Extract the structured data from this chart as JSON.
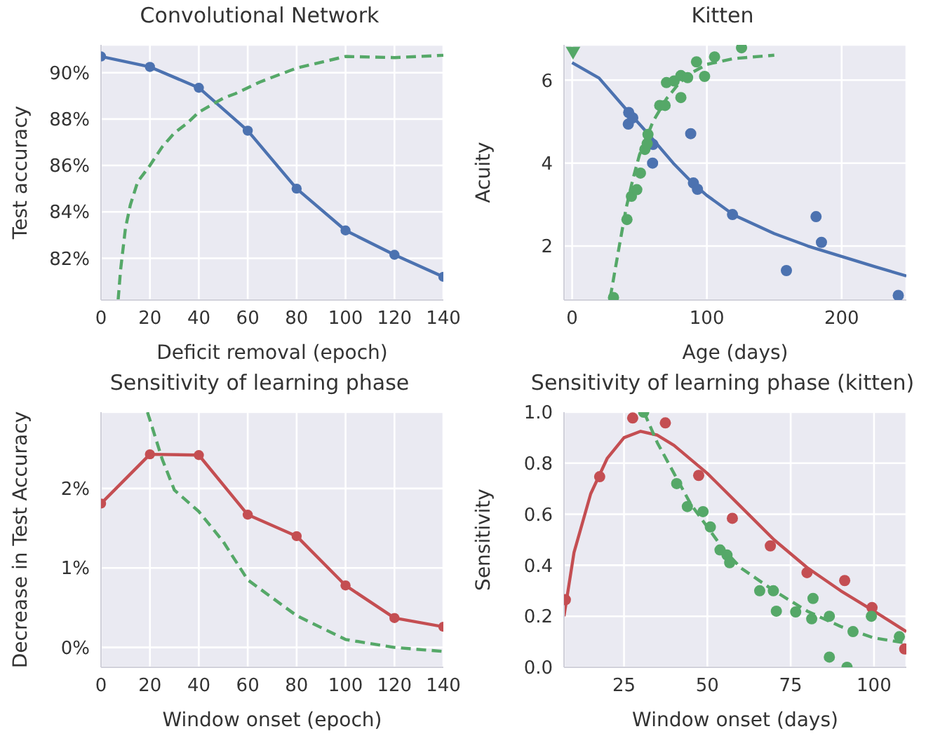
{
  "chart_data": [
    {
      "type": "line",
      "title": "Convolutional Network",
      "xlabel": "Deficit removal (epoch)",
      "ylabel": "Test accuracy",
      "xlim": [
        0,
        140
      ],
      "xticks": [
        0,
        20,
        40,
        60,
        80,
        100,
        120,
        140
      ],
      "ylim": [
        80.2,
        91.2
      ],
      "yticks": [
        {
          "value": 82,
          "label": "82%"
        },
        {
          "value": 84,
          "label": "84%"
        },
        {
          "value": 86,
          "label": "86%"
        },
        {
          "value": 88,
          "label": "88%"
        },
        {
          "value": 90,
          "label": "90%"
        }
      ],
      "grid": true,
      "series": [
        {
          "color": "#4c72b0",
          "marker": "circle",
          "line_style": "solid",
          "x": [
            0,
            20,
            40,
            60,
            80,
            100,
            120,
            140
          ],
          "values": [
            90.7,
            90.25,
            89.35,
            87.5,
            85.0,
            83.2,
            82.15,
            81.2
          ]
        },
        {
          "color": "#55a868",
          "marker": "none",
          "line_style": "dashed",
          "x": [
            7,
            8,
            10,
            12,
            15,
            20,
            25,
            30,
            35,
            40,
            50,
            55,
            65,
            80,
            100,
            120,
            140
          ],
          "values": [
            80.2,
            81.5,
            83.3,
            84.3,
            85.3,
            86.0,
            86.8,
            87.4,
            87.8,
            88.3,
            88.9,
            89.1,
            89.6,
            90.2,
            90.7,
            90.65,
            90.75
          ]
        }
      ]
    },
    {
      "type": "scatter",
      "title": "Kitten",
      "xlabel": "Age (days)",
      "ylabel": "Acuity",
      "xlim": [
        -6,
        248
      ],
      "xticks": [
        0,
        100,
        200
      ],
      "ylim": [
        0.7,
        6.85
      ],
      "yticks": [
        2,
        4,
        6
      ],
      "grid": true,
      "series": [
        {
          "color": "#4c72b0",
          "marker": "circle",
          "x": [
            42,
            41.7,
            45,
            60,
            59.7,
            88,
            90,
            93,
            119,
            159,
            181,
            185,
            242
          ],
          "values": [
            5.22,
            4.94,
            5.09,
            4.45,
            4.0,
            4.71,
            3.52,
            3.37,
            2.76,
            1.41,
            2.71,
            2.09,
            0.81
          ]
        },
        {
          "type": "line",
          "color": "#4c72b0",
          "marker": "none",
          "line_style": "solid",
          "x": [
            0,
            20,
            40,
            56,
            75,
            90,
            100,
            120,
            150,
            175,
            200,
            225,
            248
          ],
          "values": [
            6.42,
            6.05,
            5.3,
            4.72,
            4.0,
            3.5,
            3.22,
            2.75,
            2.3,
            2.0,
            1.75,
            1.5,
            1.28
          ]
        },
        {
          "color": "#55a868",
          "marker": "triangle",
          "x": [
            0.7
          ],
          "values": [
            6.67
          ]
        },
        {
          "color": "#55a868",
          "marker": "circle",
          "x": [
            30.7,
            40.7,
            44,
            48,
            50.7,
            54,
            55.7,
            56.3,
            65,
            69,
            70,
            75.7,
            80.7,
            80.7,
            85.7,
            92.3,
            98.3,
            105.7,
            125.7
          ],
          "values": [
            0.76,
            2.64,
            3.2,
            3.36,
            3.76,
            4.33,
            4.47,
            4.69,
            5.39,
            5.39,
            5.94,
            5.98,
            6.11,
            5.58,
            6.06,
            6.44,
            6.09,
            6.56,
            6.78
          ]
        },
        {
          "type": "line",
          "color": "#55a868",
          "marker": "none",
          "line_style": "dashed",
          "x": [
            28.3,
            35,
            40,
            45,
            50,
            55,
            60,
            70,
            80,
            90,
            100,
            120,
            150
          ],
          "values": [
            0.76,
            2.0,
            2.9,
            3.6,
            4.2,
            4.6,
            5.0,
            5.55,
            5.95,
            6.2,
            6.38,
            6.52,
            6.6
          ]
        }
      ]
    },
    {
      "type": "line",
      "title": "Sensitivity of learning phase",
      "xlabel": "Window onset (epoch)",
      "ylabel": "Decrease in Test Accuracy",
      "xlim": [
        0,
        140
      ],
      "xticks": [
        0,
        20,
        40,
        60,
        80,
        100,
        120,
        140
      ],
      "ylim": [
        -0.25,
        2.96
      ],
      "yticks": [
        {
          "value": 0,
          "label": "0%"
        },
        {
          "value": 1,
          "label": "1%"
        },
        {
          "value": 2,
          "label": "2%"
        }
      ],
      "grid": true,
      "series": [
        {
          "color": "#c44e52",
          "marker": "circle",
          "line_style": "solid",
          "x": [
            0,
            20,
            40,
            60,
            80,
            100,
            120,
            140
          ],
          "values": [
            1.81,
            2.43,
            2.42,
            1.67,
            1.4,
            0.78,
            0.37,
            0.26
          ]
        },
        {
          "color": "#55a868",
          "marker": "none",
          "line_style": "dashed",
          "x": [
            19,
            25,
            30,
            40,
            50,
            60,
            80,
            100,
            120,
            140
          ],
          "values": [
            2.96,
            2.37,
            1.98,
            1.71,
            1.33,
            0.85,
            0.4,
            0.1,
            0.0,
            -0.05
          ]
        }
      ]
    },
    {
      "type": "scatter",
      "title": "Sensitivity of learning phase (kitten)",
      "xlabel": "Window onset (days)",
      "ylabel": "Sensitivity",
      "xlim": [
        7,
        109.7
      ],
      "xticks": [
        25,
        50,
        75,
        100
      ],
      "ylim": [
        0,
        1
      ],
      "yticks": [
        {
          "value": 0,
          "label": "0.0"
        },
        {
          "value": 0.2,
          "label": "0.2"
        },
        {
          "value": 0.4,
          "label": "0.4"
        },
        {
          "value": 0.6,
          "label": "0.6"
        },
        {
          "value": 0.8,
          "label": "0.8"
        },
        {
          "value": 1,
          "label": "1.0"
        }
      ],
      "grid": true,
      "series": [
        {
          "color": "#c44e52",
          "marker": "circle",
          "x": [
            7.4,
            17.7,
            27.6,
            37.4,
            47.4,
            57.5,
            68.9,
            79.9,
            91.2,
            99.4,
            109.2
          ],
          "values": [
            0.265,
            0.747,
            0.977,
            0.958,
            0.752,
            0.584,
            0.476,
            0.371,
            0.34,
            0.234,
            0.072
          ]
        },
        {
          "type": "line",
          "color": "#c44e52",
          "marker": "none",
          "line_style": "solid",
          "x": [
            7,
            10,
            15,
            20,
            25,
            30,
            35,
            40,
            50,
            60,
            70,
            80,
            90,
            100,
            109.7
          ],
          "values": [
            0.2,
            0.45,
            0.68,
            0.82,
            0.9,
            0.925,
            0.91,
            0.87,
            0.76,
            0.63,
            0.5,
            0.39,
            0.3,
            0.22,
            0.14
          ]
        },
        {
          "color": "#55a868",
          "marker": "circle",
          "x": [
            30.9,
            40.8,
            44,
            48.7,
            50.9,
            53.8,
            55.9,
            56.7,
            65.7,
            69.8,
            70.7,
            76.5,
            81.3,
            81.7,
            86.6,
            86.6,
            91.9,
            93.7,
            99.2,
            107.6
          ],
          "values": [
            1.0,
            0.72,
            0.63,
            0.61,
            0.55,
            0.46,
            0.44,
            0.41,
            0.3,
            0.3,
            0.22,
            0.217,
            0.19,
            0.27,
            0.2,
            0.04,
            0.0,
            0.14,
            0.2,
            0.12
          ]
        },
        {
          "type": "line",
          "color": "#55a868",
          "marker": "none",
          "line_style": "dashed",
          "x": [
            31,
            35,
            40,
            45,
            50,
            55,
            60,
            70,
            80,
            90,
            100,
            109.7
          ],
          "values": [
            1.0,
            0.88,
            0.76,
            0.64,
            0.55,
            0.46,
            0.39,
            0.3,
            0.22,
            0.16,
            0.115,
            0.095
          ]
        }
      ]
    }
  ]
}
